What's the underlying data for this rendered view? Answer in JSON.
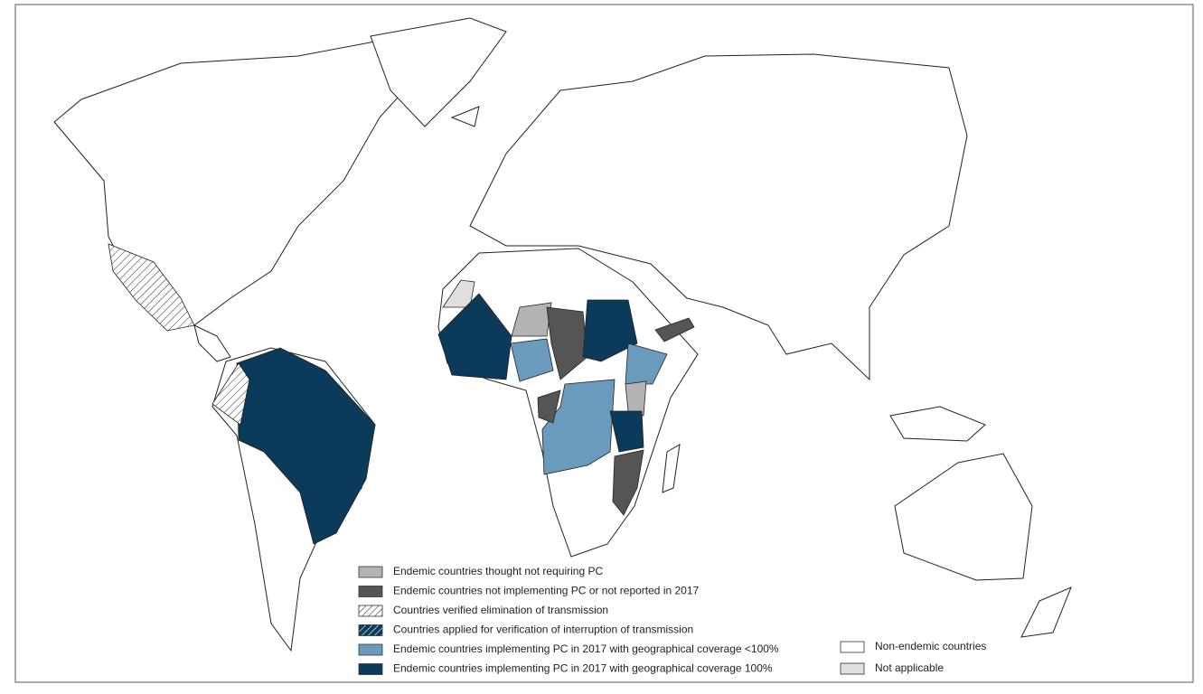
{
  "legend": {
    "items": [
      {
        "label": "Endemic countries thought not requiring PC",
        "color": "#b3b3b3"
      },
      {
        "label": "Endemic countries not implementing PC or not reported in 2017",
        "color": "#555555"
      },
      {
        "label": "Countries verified elimination of transmission",
        "color": "#ffffff",
        "hatch": "#333333"
      },
      {
        "label": "Countries applied for verification of interruption of transmission",
        "color": "#0b3a5a",
        "hatch": "#ffffff"
      },
      {
        "label": "Endemic countries implementing PC in 2017 with geographical coverage <100%",
        "color": "#6a9bbd"
      },
      {
        "label": "Endemic countries implementing PC in 2017 with geographical coverage 100%",
        "color": "#0b3a5a"
      },
      {
        "label": "Non-endemic countries",
        "color": "#ffffff"
      },
      {
        "label": "Not applicable",
        "color": "#e0e0e0"
      }
    ]
  }
}
